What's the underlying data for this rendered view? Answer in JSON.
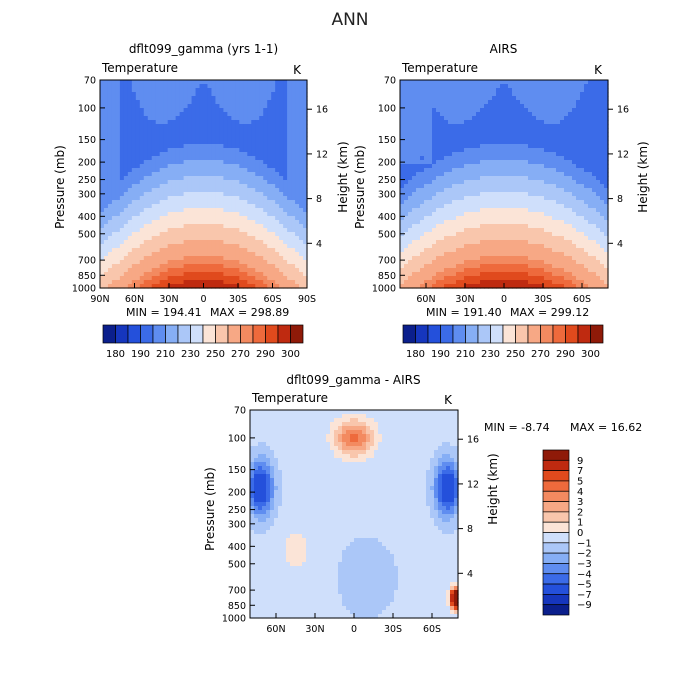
{
  "page": {
    "title": "ANN"
  },
  "chart_data": [
    {
      "type": "heatmap",
      "id": "model",
      "title": "dflt099_gamma (yrs 1-1)",
      "variable_label": "Temperature",
      "unit_label": "K",
      "xlabel": "",
      "ylabel": "Pressure (mb)",
      "y2label": "Height (km)",
      "x_ticks": [
        "90N",
        "60N",
        "30N",
        "0",
        "30S",
        "60S",
        "90S"
      ],
      "y_ticks": [
        "70",
        "100",
        "150",
        "200",
        "250",
        "300",
        "400",
        "500",
        "700",
        "850",
        "1000"
      ],
      "y2_ticks": [
        "16",
        "12",
        "8",
        "4"
      ],
      "stats": {
        "min_label": "MIN = 194.41",
        "max_label": "MAX = 298.89",
        "min": 194.41,
        "max": 298.89
      },
      "colorbar": {
        "orientation": "horizontal",
        "labels": [
          "180",
          "190",
          "210",
          "230",
          "250",
          "270",
          "290",
          "300"
        ],
        "colors": [
          "#0b1f8c",
          "#1636bd",
          "#2450db",
          "#3b6be8",
          "#5f8df0",
          "#86aef5",
          "#abc7f8",
          "#cfdffb",
          "#fbe4d7",
          "#f9c6ac",
          "#f7a885",
          "#f38a60",
          "#ee6a3c",
          "#e04a1d",
          "#bf2a10",
          "#8f1a08"
        ]
      }
    },
    {
      "type": "heatmap",
      "id": "obs",
      "title": "AIRS",
      "variable_label": "Temperature",
      "unit_label": "K",
      "xlabel": "",
      "ylabel": "Pressure (mb)",
      "y2label": "Height (km)",
      "x_ticks": [
        "60N",
        "30N",
        "0",
        "30S",
        "60S"
      ],
      "y_ticks": [
        "70",
        "100",
        "150",
        "200",
        "250",
        "300",
        "400",
        "500",
        "700",
        "850",
        "1000"
      ],
      "y2_ticks": [
        "16",
        "12",
        "8",
        "4"
      ],
      "stats": {
        "min_label": "MIN = 191.40",
        "max_label": "MAX = 299.12",
        "min": 191.4,
        "max": 299.12
      },
      "colorbar": {
        "orientation": "horizontal",
        "labels": [
          "180",
          "190",
          "210",
          "230",
          "250",
          "270",
          "290",
          "300"
        ],
        "colors": [
          "#0b1f8c",
          "#1636bd",
          "#2450db",
          "#3b6be8",
          "#5f8df0",
          "#86aef5",
          "#abc7f8",
          "#cfdffb",
          "#fbe4d7",
          "#f9c6ac",
          "#f7a885",
          "#f38a60",
          "#ee6a3c",
          "#e04a1d",
          "#bf2a10",
          "#8f1a08"
        ]
      }
    },
    {
      "type": "heatmap",
      "id": "diff",
      "title": "dflt099_gamma - AIRS",
      "variable_label": "Temperature",
      "unit_label": "K",
      "xlabel": "",
      "ylabel": "Pressure (mb)",
      "y2label": "Height (km)",
      "x_ticks": [
        "60N",
        "30N",
        "0",
        "30S",
        "60S"
      ],
      "y_ticks": [
        "70",
        "100",
        "150",
        "200",
        "250",
        "300",
        "400",
        "500",
        "700",
        "850",
        "1000"
      ],
      "y2_ticks": [
        "16",
        "12",
        "8",
        "4"
      ],
      "stats": {
        "min_label": "MIN =   -8.74",
        "max_label": "MAX =   16.62",
        "min": -8.74,
        "max": 16.62
      },
      "colorbar": {
        "orientation": "vertical",
        "labels": [
          "9",
          "7",
          "5",
          "4",
          "3",
          "2",
          "1",
          "0",
          "-1",
          "-2",
          "-3",
          "-4",
          "-5",
          "-7",
          "-9"
        ],
        "colors": [
          "#8f1a08",
          "#bf2a10",
          "#e04a1d",
          "#ee6a3c",
          "#f38a60",
          "#f7a885",
          "#f9c6ac",
          "#fbe4d7",
          "#cfdffb",
          "#abc7f8",
          "#86aef5",
          "#5f8df0",
          "#3b6be8",
          "#2450db",
          "#1636bd",
          "#0b1f8c"
        ]
      }
    }
  ]
}
